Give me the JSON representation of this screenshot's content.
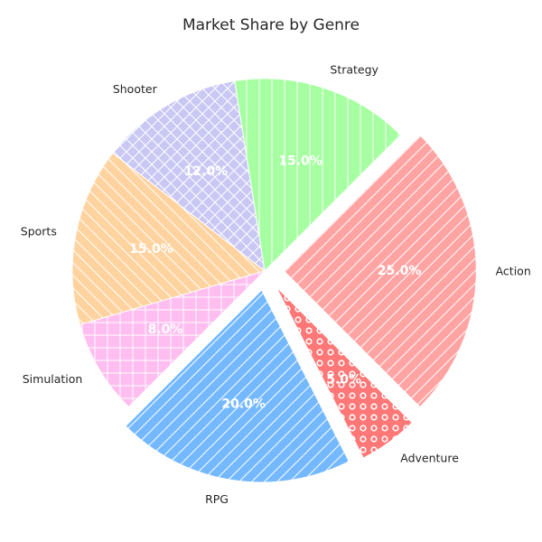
{
  "chart_data": {
    "type": "pie",
    "title": "Market Share by Genre",
    "slices": [
      {
        "label": "Action",
        "value": 25.0,
        "pct_label": "25.0%",
        "color": "#ffa3a3",
        "pattern": "diagonal",
        "exploded": true
      },
      {
        "label": "Strategy",
        "value": 15.0,
        "pct_label": "15.0%",
        "color": "#a6ffa1",
        "pattern": "vertical",
        "exploded": false
      },
      {
        "label": "Shooter",
        "value": 12.0,
        "pct_label": "12.0%",
        "color": "#c9c8f4",
        "pattern": "crosshatch-diagonal",
        "exploded": false
      },
      {
        "label": "Sports",
        "value": 15.0,
        "pct_label": "15.0%",
        "color": "#ffd39f",
        "pattern": "backslash",
        "exploded": false
      },
      {
        "label": "Simulation",
        "value": 8.0,
        "pct_label": "8.0%",
        "color": "#ffbdf0",
        "pattern": "grid",
        "exploded": false
      },
      {
        "label": "RPG",
        "value": 20.0,
        "pct_label": "20.0%",
        "color": "#74b8ff",
        "pattern": "diagonal",
        "exploded": true
      },
      {
        "label": "Adventure",
        "value": 5.0,
        "pct_label": "5.0%",
        "color": "#ff7777",
        "pattern": "circles",
        "exploded": true
      }
    ],
    "start_angle_deg": 315,
    "direction": "counterclockwise",
    "edge_color": "#ffffff"
  }
}
